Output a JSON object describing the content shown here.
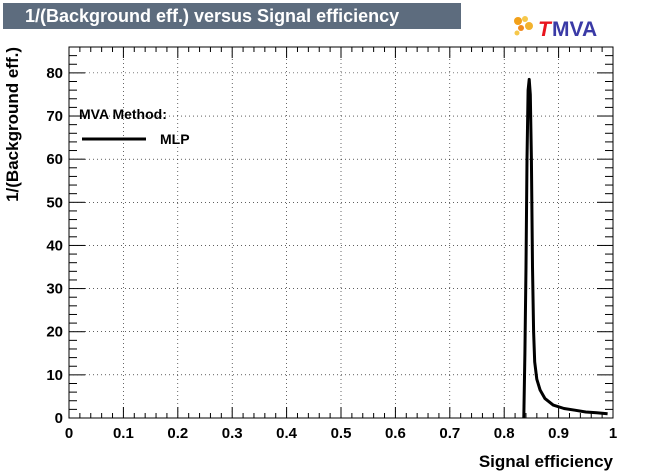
{
  "header": {
    "title": "1/(Background eff.) versus Signal efficiency",
    "logo": {
      "prefix": "T",
      "text": "MVA",
      "prefix_color": "#e8141e",
      "text_color": "#3a3aa6"
    }
  },
  "legend": {
    "heading": "MVA Method:",
    "entries": [
      "MLP"
    ]
  },
  "colors": {
    "title_bg": "#5d6c7e",
    "line": "#000000",
    "grid": "#000000"
  },
  "chart_data": {
    "type": "line",
    "title": "1/(Background eff.) versus Signal efficiency",
    "xlabel": "Signal efficiency",
    "ylabel": "1/(Background eff.)",
    "xlim": [
      0,
      1
    ],
    "ylim": [
      0,
      86
    ],
    "grid": true,
    "legend_position": "top-left",
    "x_ticks": [
      0,
      0.1,
      0.2,
      0.3,
      0.4,
      0.5,
      0.6,
      0.7,
      0.8,
      0.9,
      1
    ],
    "x_tick_labels": [
      "0",
      "0.1",
      "0.2",
      "0.3",
      "0.4",
      "0.5",
      "0.6",
      "0.7",
      "0.8",
      "0.9",
      "1"
    ],
    "y_ticks": [
      0,
      10,
      20,
      30,
      40,
      50,
      60,
      70,
      80
    ],
    "y_tick_labels": [
      "0",
      "10",
      "20",
      "30",
      "40",
      "50",
      "60",
      "70",
      "80"
    ],
    "series": [
      {
        "name": "MLP",
        "x": [
          0.836,
          0.838,
          0.84,
          0.842,
          0.844,
          0.846,
          0.848,
          0.85,
          0.852,
          0.854,
          0.856,
          0.86,
          0.866,
          0.875,
          0.89,
          0.91,
          0.93,
          0.95,
          0.97,
          0.99
        ],
        "y": [
          0,
          15,
          35,
          60,
          76,
          78.5,
          75,
          60,
          35,
          20,
          13,
          9,
          6.5,
          4.5,
          3,
          2.2,
          1.8,
          1.4,
          1.2,
          1.0
        ]
      }
    ]
  }
}
